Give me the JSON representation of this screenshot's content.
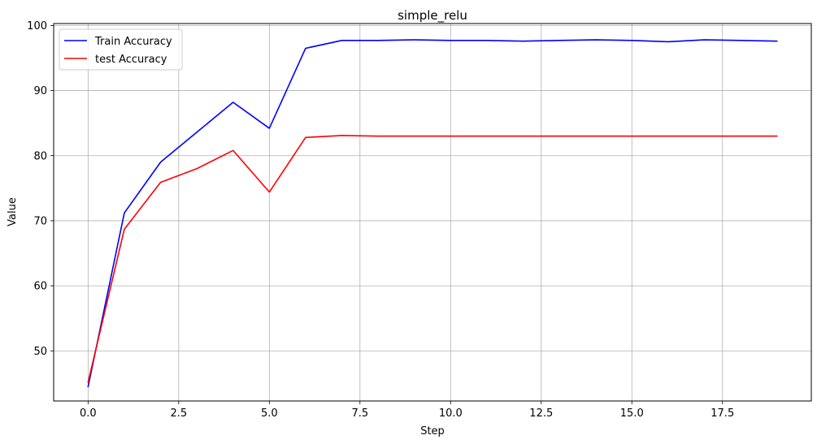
{
  "chart_data": {
    "type": "line",
    "title": "simple_relu",
    "xlabel": "Step",
    "ylabel": "Value",
    "xlim": [
      -0.95,
      19.95
    ],
    "ylim": [
      42.3,
      100.3
    ],
    "x_ticks": [
      0.0,
      2.5,
      5.0,
      7.5,
      10.0,
      12.5,
      15.0,
      17.5
    ],
    "x_tick_labels": [
      "0.0",
      "2.5",
      "5.0",
      "7.5",
      "10.0",
      "12.5",
      "15.0",
      "17.5"
    ],
    "y_ticks": [
      50,
      60,
      70,
      80,
      90,
      100
    ],
    "y_tick_labels": [
      "50",
      "60",
      "70",
      "80",
      "90",
      "100"
    ],
    "grid": true,
    "legend_position": "top-left",
    "x": [
      0,
      1,
      2,
      3,
      4,
      5,
      6,
      7,
      8,
      9,
      10,
      11,
      12,
      13,
      14,
      15,
      16,
      17,
      18,
      19
    ],
    "series": [
      {
        "name": "Train Accuracy",
        "color": "#0000ff",
        "values": [
          44.5,
          71.2,
          79.0,
          83.6,
          88.2,
          84.2,
          96.5,
          97.7,
          97.7,
          97.8,
          97.7,
          97.7,
          97.6,
          97.7,
          97.8,
          97.7,
          97.5,
          97.8,
          97.7,
          97.6
        ]
      },
      {
        "name": "test Accuracy",
        "color": "#ff0000",
        "values": [
          45.2,
          68.7,
          75.9,
          78.0,
          80.8,
          74.4,
          82.8,
          83.1,
          83.0,
          83.0,
          83.0,
          83.0,
          83.0,
          83.0,
          83.0,
          83.0,
          83.0,
          83.0,
          83.0,
          83.0
        ]
      }
    ]
  }
}
